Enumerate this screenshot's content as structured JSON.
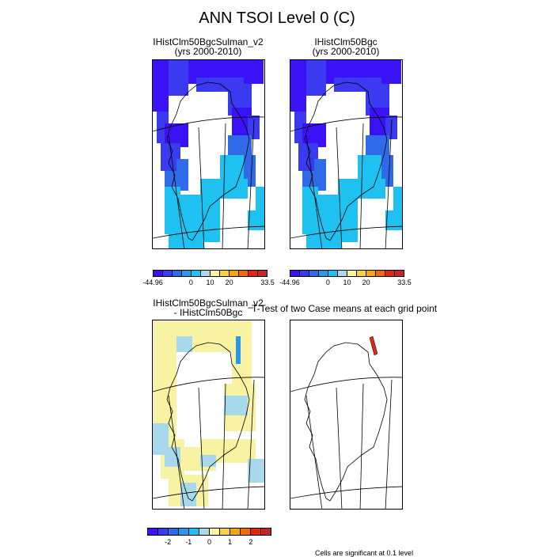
{
  "title": "ANN TSOI Level 0 (C)",
  "panels": {
    "test_case": {
      "title_line1": "IHistClm50BgcSulman_v2",
      "title_line2": "(yrs 2000-2010)"
    },
    "control_case": {
      "title_line1": "IHistClm50Bgc",
      "title_line2": "(yrs 2000-2010)"
    },
    "difference": {
      "title_line1": "IHistClm50BgcSulman_v2",
      "title_line2": "- IHistClm50Bgc"
    },
    "ttest": {
      "title": "T-Test of two Case means at each grid point"
    }
  },
  "colorbar_abs": {
    "colors": [
      "#3b12f5",
      "#3a3af0",
      "#2f6be8",
      "#2a98e6",
      "#1ec1ef",
      "#a8d8ec",
      "#f7f3a3",
      "#f5d342",
      "#f5a413",
      "#ee6a10",
      "#e22515",
      "#c2282a"
    ],
    "tick_labels": [
      "-44.96",
      "0",
      "10",
      "20",
      "33.5"
    ],
    "tick_positions": [
      0,
      4,
      6,
      8,
      12
    ]
  },
  "colorbar_diff": {
    "colors": [
      "#3b12f5",
      "#3a3af0",
      "#2f6be8",
      "#2a98e6",
      "#1ec1ef",
      "#a8d8ec",
      "#f7f3a3",
      "#f5d342",
      "#f5a413",
      "#ee6a10",
      "#e22515",
      "#c2282a"
    ],
    "tick_labels": [
      "-2",
      "-1",
      "0",
      "1",
      "2"
    ],
    "tick_positions": [
      2,
      4,
      6,
      8,
      10
    ]
  },
  "footnote": "Cells are significant at 0.1 level"
}
